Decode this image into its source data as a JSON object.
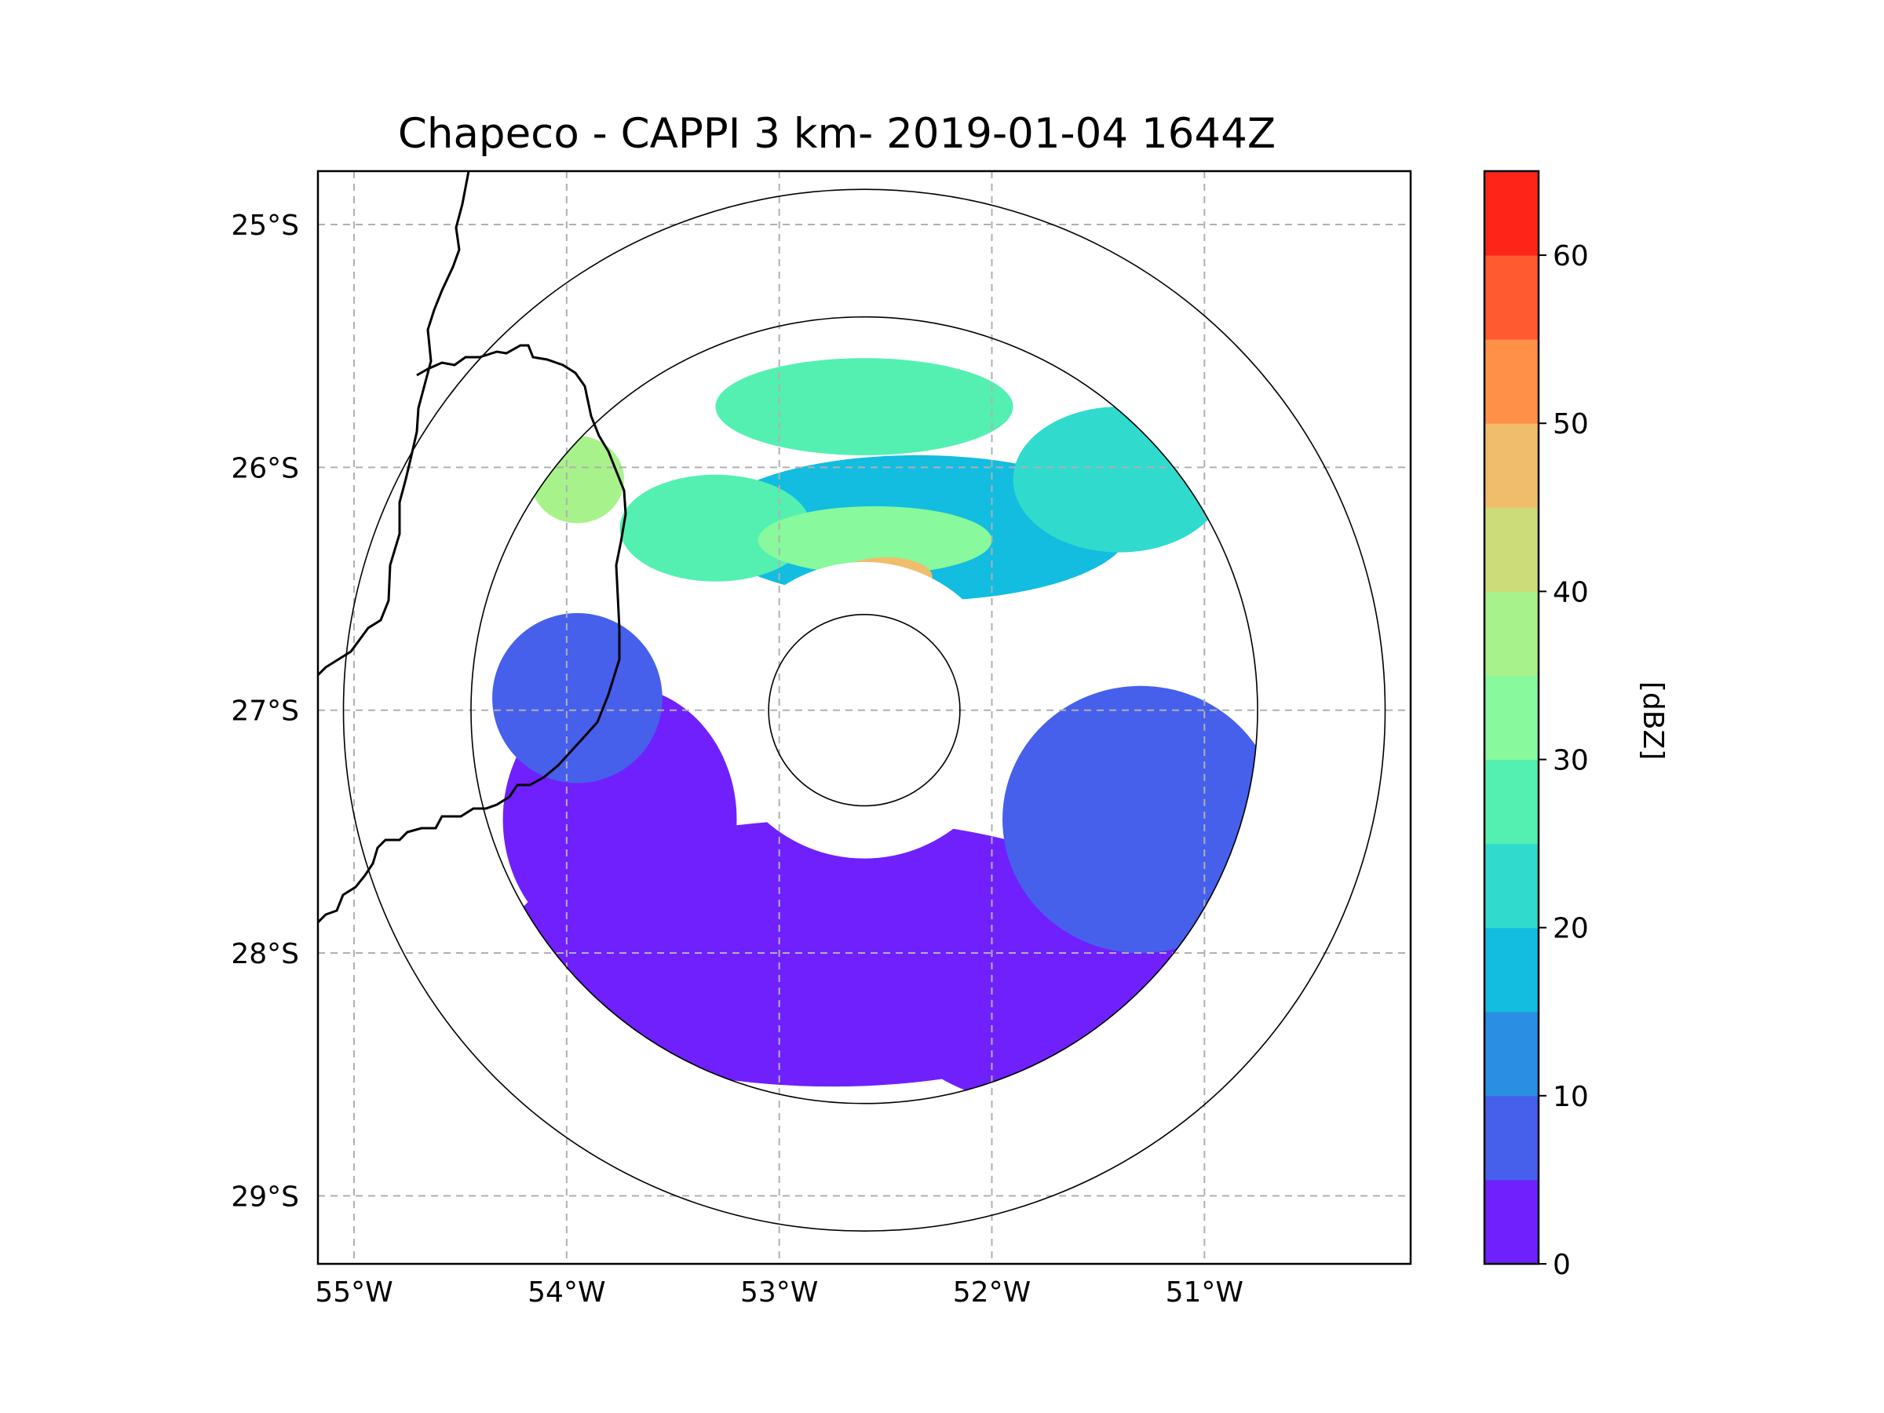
{
  "chart_data": {
    "type": "heatmap",
    "title": "Chapeco - CAPPI 3 km- 2019-01-04 1644Z",
    "x_ticks": [
      {
        "value": -55,
        "label": "55°W"
      },
      {
        "value": -54,
        "label": "54°W"
      },
      {
        "value": -53,
        "label": "53°W"
      },
      {
        "value": -52,
        "label": "52°W"
      },
      {
        "value": -51,
        "label": "51°W"
      }
    ],
    "y_ticks": [
      {
        "value": -25,
        "label": "25°S"
      },
      {
        "value": -26,
        "label": "26°S"
      },
      {
        "value": -27,
        "label": "27°S"
      },
      {
        "value": -28,
        "label": "28°S"
      },
      {
        "value": -29,
        "label": "29°S"
      }
    ],
    "xlim": [
      -55.17,
      -50.03
    ],
    "ylim": [
      -29.28,
      -24.78
    ],
    "grid": true,
    "radar_center": {
      "lon": -52.6,
      "lat": -27.0
    },
    "range_rings_deg": [
      0.45,
      1.85,
      2.45
    ],
    "colorbar": {
      "label": "[dBZ]",
      "min": 0,
      "max": 65,
      "step": 5,
      "ticks": [
        {
          "value": 0,
          "label": "0"
        },
        {
          "value": 10,
          "label": "10"
        },
        {
          "value": 20,
          "label": "20"
        },
        {
          "value": 30,
          "label": "30"
        },
        {
          "value": 40,
          "label": "40"
        },
        {
          "value": 50,
          "label": "50"
        },
        {
          "value": 60,
          "label": "60"
        }
      ],
      "colors": [
        "#7020fd",
        "#4660ec",
        "#2a8ee2",
        "#12bde0",
        "#30dbcd",
        "#54f0b2",
        "#88f99c",
        "#a8f28c",
        "#ccdc78",
        "#f0bd6c",
        "#ff9048",
        "#ff5a30",
        "#ff2418"
      ]
    },
    "reflectivity_regions": [
      {
        "dbz": 2,
        "lon": -52.75,
        "lat": -28.0,
        "rx": 1.55,
        "ry": 0.55
      },
      {
        "dbz": 2,
        "lon": -51.6,
        "lat": -28.2,
        "rx": 0.9,
        "ry": 0.45
      },
      {
        "dbz": 2,
        "lon": -53.75,
        "lat": -27.45,
        "rx": 0.55,
        "ry": 0.55
      },
      {
        "dbz": 7,
        "lon": -51.3,
        "lat": -27.45,
        "rx": 0.65,
        "ry": 0.55
      },
      {
        "dbz": 7,
        "lon": -53.95,
        "lat": -26.95,
        "rx": 0.4,
        "ry": 0.35
      },
      {
        "dbz": 17,
        "lon": -52.35,
        "lat": -26.25,
        "rx": 1.0,
        "ry": 0.3
      },
      {
        "dbz": 22,
        "lon": -51.4,
        "lat": -26.05,
        "rx": 0.5,
        "ry": 0.3
      },
      {
        "dbz": 27,
        "lon": -52.6,
        "lat": -25.75,
        "rx": 0.7,
        "ry": 0.2
      },
      {
        "dbz": 27,
        "lon": -53.3,
        "lat": -26.25,
        "rx": 0.45,
        "ry": 0.22
      },
      {
        "dbz": 32,
        "lon": -52.55,
        "lat": -26.3,
        "rx": 0.55,
        "ry": 0.14
      },
      {
        "dbz": 37,
        "lon": -53.95,
        "lat": -26.05,
        "rx": 0.22,
        "ry": 0.18
      },
      {
        "dbz": 47,
        "lon": -52.5,
        "lat": -26.45,
        "rx": 0.22,
        "ry": 0.08
      }
    ]
  }
}
